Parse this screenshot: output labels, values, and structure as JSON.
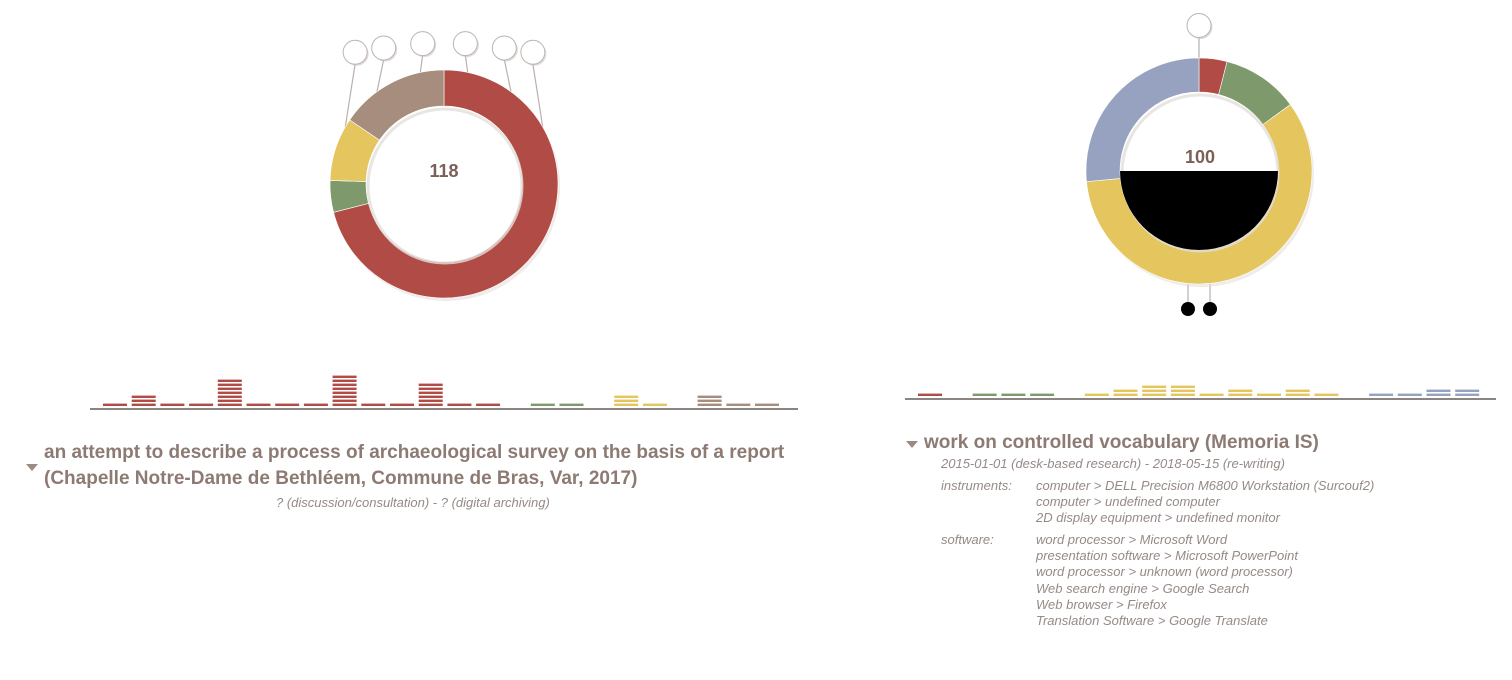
{
  "colors": {
    "red": "#b04b45",
    "green": "#7e9a6c",
    "yellow": "#e4c55e",
    "taupe": "#a68d7d",
    "blue": "#97a1c0",
    "axis": "#8c8480",
    "text": "#8d7a73",
    "pin_white": "#ffffff",
    "pin_black": "#000000"
  },
  "left": {
    "donut": {
      "count": "118",
      "segments": [
        {
          "color": "red",
          "fraction": 0.71
        },
        {
          "color": "green",
          "fraction": 0.045
        },
        {
          "color": "yellow",
          "fraction": 0.09
        },
        {
          "color": "taupe",
          "fraction": 0.155
        }
      ],
      "top_pins": 6,
      "bottom_pins": 0
    },
    "histogram": {
      "groups": [
        {
          "color": "red",
          "bars": [
            1,
            3,
            1,
            1,
            7,
            1,
            1,
            1,
            8,
            1,
            1,
            6,
            1,
            1
          ]
        },
        {
          "color": "green",
          "bars": [
            1,
            1
          ]
        },
        {
          "color": "yellow",
          "bars": [
            3,
            1
          ]
        },
        {
          "color": "taupe",
          "bars": [
            3,
            1,
            1
          ]
        }
      ]
    },
    "title_line1": "an attempt to describe a process of archaeological survey on the basis of a report",
    "title_line2": "(Chapelle Notre-Dame de Bethléem, Commune de Bras, Var, 2017)",
    "subtitle": "? (discussion/consultation) - ? (digital archiving)"
  },
  "right": {
    "donut": {
      "count": "100",
      "segments": [
        {
          "color": "red",
          "fraction": 0.04
        },
        {
          "color": "green",
          "fraction": 0.11
        },
        {
          "color": "yellow",
          "fraction": 0.585
        },
        {
          "color": "blue",
          "fraction": 0.265
        }
      ],
      "top_pins": 1,
      "bottom_pins": 2,
      "fill_fraction": 0.5
    },
    "histogram": {
      "groups": [
        {
          "color": "red",
          "bars": [
            1
          ]
        },
        {
          "color": "green",
          "bars": [
            1,
            1,
            1
          ]
        },
        {
          "color": "yellow",
          "bars": [
            1,
            2,
            3,
            3,
            1,
            2,
            1,
            2,
            1
          ]
        },
        {
          "color": "blue",
          "bars": [
            1,
            1,
            2,
            2
          ]
        }
      ]
    },
    "title": "work on controlled vocabulary (Memoria IS)",
    "dates": "2015-01-01 (desk-based research) - 2018-05-15 (re-writing)",
    "instruments_label": "instruments:",
    "instruments": [
      "computer > DELL Precision M6800 Workstation (Surcouf2)",
      "computer > undefined computer",
      "2D display equipment > undefined monitor"
    ],
    "software_label": "software:",
    "software": [
      "word processor > Microsoft Word",
      "presentation software > Microsoft PowerPoint",
      "word processor > unknown (word processor)",
      "Web search engine > Google Search",
      "Web browser > Firefox",
      "Translation Software > Google Translate"
    ]
  }
}
